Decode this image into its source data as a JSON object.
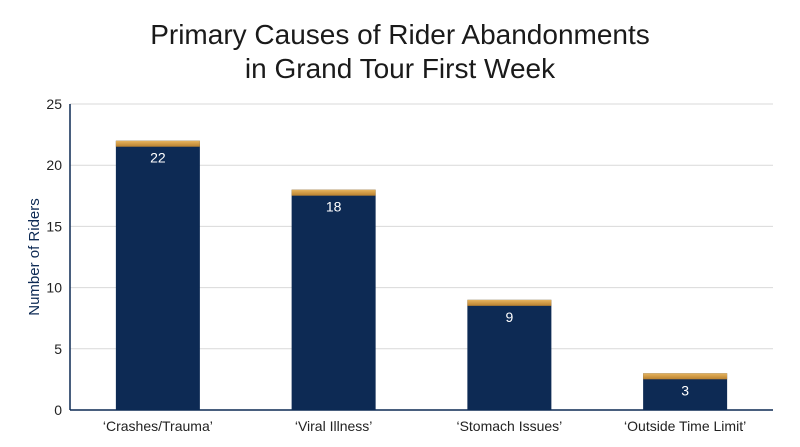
{
  "title_line1": "Primary Causes of Rider Abandonments",
  "title_line2": "in Grand Tour First Week",
  "chart_data": {
    "type": "bar",
    "title": "Primary Causes of Rider Abandonments in Grand Tour First Week",
    "xlabel": "",
    "ylabel": "Number of Riders",
    "categories": [
      "‘Crashes/Trauma’",
      "‘Viral Illness’",
      "‘Stomach Issues’",
      "‘Outside Time Limit’"
    ],
    "values": [
      22,
      18,
      9,
      3
    ],
    "ylim": [
      0,
      25
    ],
    "yticks": [
      0,
      5,
      10,
      15,
      20,
      25
    ],
    "grid": true,
    "legend": "none",
    "colors": {
      "bar": "#0d2a54",
      "bar_top": "#d4a04a",
      "axis": "#0d2a54",
      "grid": "#d9d9d9"
    }
  }
}
